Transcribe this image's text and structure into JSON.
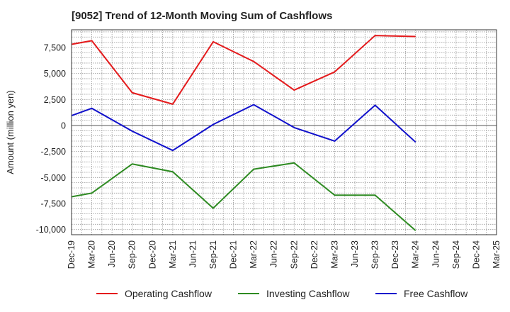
{
  "chart_data": {
    "type": "line",
    "title": "[9052]  Trend of 12-Month Moving Sum of Cashflows",
    "xlabel": "",
    "ylabel": "Amount (million yen)",
    "categories": [
      "Dec-19",
      "Mar-20",
      "Jun-20",
      "Sep-20",
      "Dec-20",
      "Mar-21",
      "Jun-21",
      "Sep-21",
      "Dec-21",
      "Mar-22",
      "Jun-22",
      "Sep-22",
      "Dec-22",
      "Mar-23",
      "Jun-23",
      "Sep-23",
      "Dec-23",
      "Mar-24",
      "Jun-24",
      "Sep-24",
      "Dec-24",
      "Mar-25"
    ],
    "ylim": [
      -10500,
      9200
    ],
    "yticks": [
      -10000,
      -7500,
      -5000,
      -2500,
      0,
      2500,
      5000,
      7500
    ],
    "ytick_labels": [
      "-10,000",
      "-7,500",
      "-5,000",
      "-2,500",
      "0",
      "2,500",
      "5,000",
      "7,500"
    ],
    "grid": true,
    "legend_position": "bottom",
    "series": [
      {
        "name": "Operating Cashflow",
        "color": "#e41a1c",
        "values": [
          7800,
          8150,
          null,
          3150,
          null,
          2050,
          null,
          8050,
          null,
          6150,
          null,
          3400,
          null,
          5150,
          null,
          8650,
          null,
          8550,
          null,
          null,
          null,
          null
        ]
      },
      {
        "name": "Investing Cashflow",
        "color": "#2e8b22",
        "values": [
          -6850,
          -6500,
          null,
          -3700,
          null,
          -4450,
          null,
          -7950,
          null,
          -4200,
          null,
          -3600,
          null,
          -6700,
          null,
          -6700,
          null,
          -10100,
          null,
          null,
          null,
          null
        ]
      },
      {
        "name": "Free Cashflow",
        "color": "#1010cc",
        "values": [
          950,
          1650,
          null,
          -550,
          null,
          -2400,
          null,
          100,
          null,
          2000,
          null,
          -200,
          null,
          -1500,
          null,
          1950,
          null,
          -1600,
          null,
          null,
          null,
          null
        ]
      }
    ]
  }
}
